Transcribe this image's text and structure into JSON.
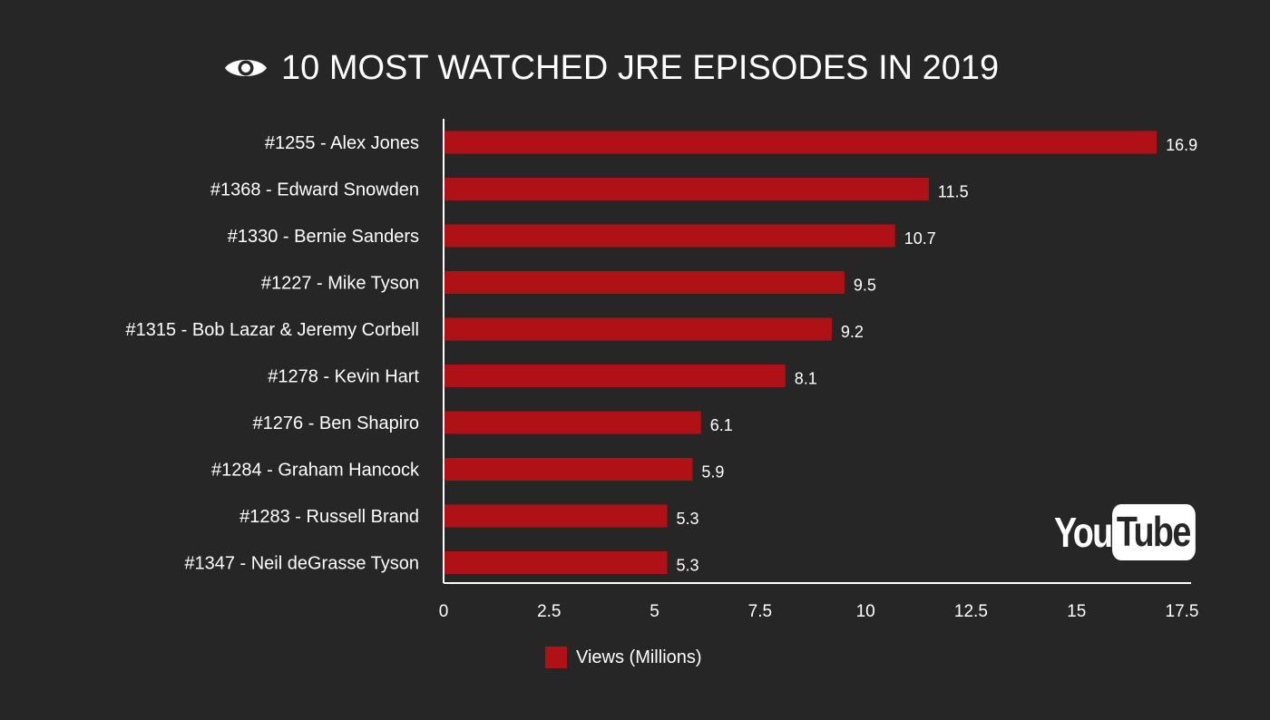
{
  "header": {
    "title": "10 MOST WATCHED JRE EPISODES IN 2019",
    "icon": "eye-icon"
  },
  "logo": {
    "you": "You",
    "tube": "Tube"
  },
  "colors": {
    "background": "#262626",
    "bar": "#b01116",
    "text": "#ffffff",
    "axis": "#ffffff"
  },
  "chart_data": {
    "type": "bar",
    "orientation": "horizontal",
    "categories": [
      "#1255 - Alex Jones",
      "#1368 - Edward Snowden",
      "#1330 - Bernie Sanders",
      "#1227 - Mike Tyson",
      "#1315 - Bob Lazar & Jeremy Corbell",
      "#1278 - Kevin Hart",
      "#1276 - Ben Shapiro",
      "#1284 - Graham Hancock",
      "#1283 - Russell Brand",
      "#1347 - Neil deGrasse Tyson"
    ],
    "series": [
      {
        "name": "Views (Millions)",
        "values": [
          16.9,
          11.5,
          10.7,
          9.5,
          9.2,
          8.1,
          6.1,
          5.9,
          5.3,
          5.3
        ]
      }
    ],
    "value_labels": [
      "16.9",
      "11.5",
      "10.7",
      "9.5",
      "9.2",
      "8.1",
      "6.1",
      "5.9",
      "5.3",
      "5.3"
    ],
    "title": "10 MOST WATCHED JRE EPISODES IN 2019",
    "xlabel": "",
    "ylabel": "",
    "xlim": [
      0,
      17.5
    ],
    "xticks": [
      0,
      2.5,
      5,
      7.5,
      10,
      12.5,
      15,
      17.5
    ],
    "xtick_labels": [
      "0",
      "2.5",
      "5",
      "7.5",
      "10",
      "12.5",
      "15",
      "17.5"
    ],
    "grid": false,
    "legend": "bottom-center"
  }
}
